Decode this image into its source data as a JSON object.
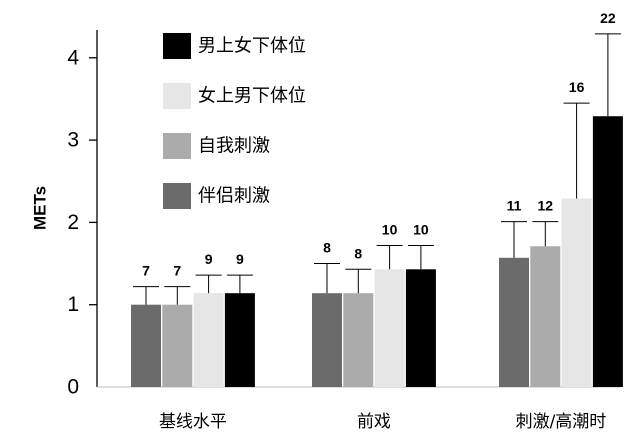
{
  "chart_data": {
    "type": "bar",
    "ylabel": "METs",
    "xlabel": "",
    "ylim": [
      0,
      4.4
    ],
    "yticks": [
      "0",
      "1",
      "2",
      "3",
      "4"
    ],
    "categories": [
      "基线水平",
      "前戏",
      "刺激/高潮时"
    ],
    "series": [
      {
        "name": "伴侣刺激",
        "color": "#6b6b6b",
        "values": [
          1.0,
          1.14,
          1.57
        ],
        "errors": [
          0.22,
          0.36,
          0.44
        ],
        "labels": [
          "7",
          "8",
          "11"
        ]
      },
      {
        "name": "自我刺激",
        "color": "#ababab",
        "values": [
          1.0,
          1.14,
          1.71
        ],
        "errors": [
          0.22,
          0.29,
          0.3
        ],
        "labels": [
          "7",
          "8",
          "12"
        ]
      },
      {
        "name": "女上男下体位",
        "color": "#e6e6e6",
        "values": [
          1.14,
          1.43,
          2.29
        ],
        "errors": [
          0.22,
          0.29,
          1.16
        ],
        "labels": [
          "9",
          "10",
          "16"
        ]
      },
      {
        "name": "男上女下体位",
        "color": "#000000",
        "values": [
          1.14,
          1.43,
          3.29
        ],
        "errors": [
          0.22,
          0.29,
          1.0
        ],
        "labels": [
          "9",
          "10",
          "22"
        ]
      }
    ],
    "legend_order": [
      3,
      2,
      1,
      0
    ],
    "legend": "top-left, inside plot",
    "grid": false
  }
}
